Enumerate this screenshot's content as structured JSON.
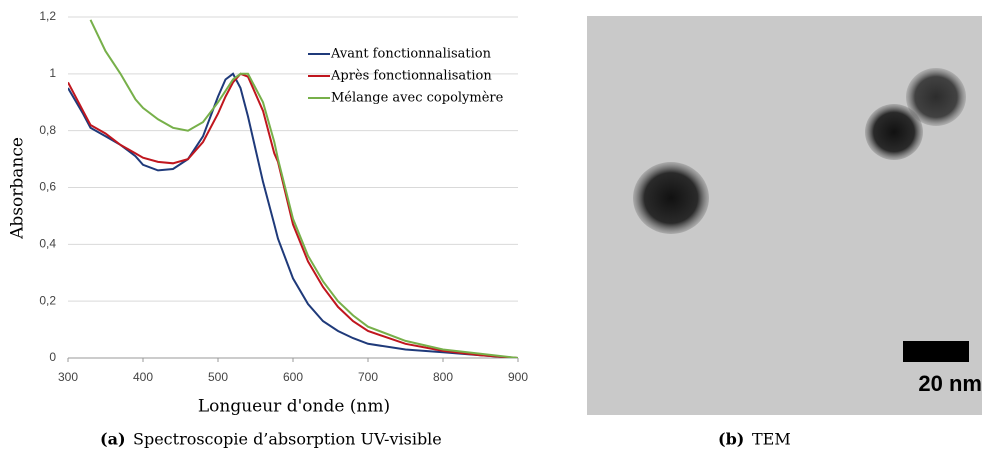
{
  "chart_data": {
    "type": "line",
    "x_label": "Longueur d'onde (nm)",
    "y_label": "Absorbance",
    "x": [
      300,
      320,
      330,
      350,
      370,
      390,
      400,
      420,
      440,
      460,
      480,
      500,
      510,
      520,
      530,
      540,
      560,
      575,
      580,
      600,
      620,
      640,
      660,
      680,
      700,
      750,
      800,
      850,
      900
    ],
    "series": [
      {
        "name": "Avant fonctionnalisation",
        "color": "#1f3a7a",
        "values": [
          0.95,
          0.86,
          0.81,
          0.78,
          0.75,
          0.71,
          0.68,
          0.66,
          0.665,
          0.7,
          0.78,
          0.92,
          0.98,
          1.0,
          0.95,
          0.85,
          0.62,
          0.47,
          0.42,
          0.28,
          0.19,
          0.13,
          0.095,
          0.07,
          0.05,
          0.03,
          0.02,
          0.01,
          0
        ]
      },
      {
        "name": "Après fonctionnalisation",
        "color": "#c0161e",
        "values": [
          0.97,
          0.87,
          0.82,
          0.79,
          0.75,
          0.72,
          0.705,
          0.69,
          0.685,
          0.7,
          0.76,
          0.86,
          0.92,
          0.97,
          1.0,
          0.99,
          0.87,
          0.72,
          0.69,
          0.47,
          0.34,
          0.25,
          0.18,
          0.13,
          0.095,
          0.05,
          0.025,
          0.01,
          0
        ]
      },
      {
        "name": "Mélange avec copolymère",
        "color": "#77b04a",
        "values": [
          null,
          null,
          1.19,
          1.08,
          1.0,
          0.91,
          0.88,
          0.84,
          0.81,
          0.8,
          0.83,
          0.9,
          0.94,
          0.98,
          1.0,
          1.0,
          0.9,
          0.76,
          0.7,
          0.49,
          0.36,
          0.27,
          0.2,
          0.15,
          0.11,
          0.06,
          0.03,
          0.015,
          0
        ]
      }
    ],
    "xlim": [
      300,
      900
    ],
    "xticks": [
      300,
      400,
      500,
      600,
      700,
      800,
      900
    ],
    "ylim": [
      0,
      1.2
    ],
    "yticks": [
      0,
      {
        "value": 0.2,
        "label": "0,2"
      },
      {
        "value": 0.4,
        "label": "0,4"
      },
      {
        "value": 0.6,
        "label": "0,6"
      },
      {
        "value": 0.8,
        "label": "0,8"
      },
      1,
      {
        "value": 1.2,
        "label": "1,2"
      }
    ],
    "grid": true,
    "legend": "top-right"
  },
  "tem": {
    "scale_bar": "20 nm"
  },
  "captions": [
    {
      "label": "(a)",
      "text": "Spectroscopie d’absorption UV-visible"
    },
    {
      "label": "(b)",
      "text": "TEM"
    }
  ]
}
